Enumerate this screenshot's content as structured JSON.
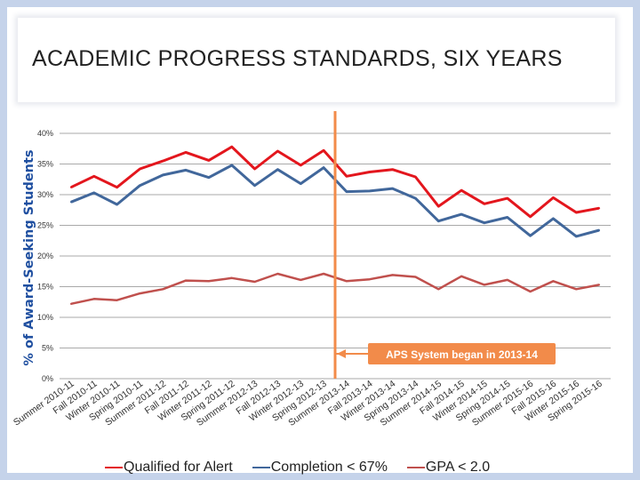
{
  "chart_data": {
    "type": "line",
    "title": "ACADEMIC PROGRESS STANDARDS, SIX YEARS",
    "ylabel": "% of Award-Seeking Students",
    "xlabel": "",
    "ylim": [
      0,
      40
    ],
    "yticks": [
      "0%",
      "5%",
      "10%",
      "15%",
      "20%",
      "25%",
      "30%",
      "35%",
      "40%"
    ],
    "grid": true,
    "legend_position": "bottom",
    "categories": [
      "Summer 2010-11",
      "Fall 2010-11",
      "Winter 2010-11",
      "Spring 2010-11",
      "Summer 2011-12",
      "Fall 2011-12",
      "Winter 2011-12",
      "Spring 2011-12",
      "Summer 2012-13",
      "Fall 2012-13",
      "Winter 2012-13",
      "Spring 2012-13",
      "Summer 2013-14",
      "Fall 2013-14",
      "Winter 2013-14",
      "Spring 2013-14",
      "Summer 2014-15",
      "Fall 2014-15",
      "Winter 2014-15",
      "Spring 2014-15",
      "Summer 2015-16",
      "Fall 2015-16",
      "Winter 2015-16",
      "Spring 2015-16"
    ],
    "series": [
      {
        "name": "Qualified for Alert",
        "color": "#e3161d",
        "values": [
          31.2,
          33.0,
          31.2,
          34.2,
          35.5,
          36.9,
          35.6,
          37.8,
          34.2,
          37.1,
          34.8,
          37.2,
          33.0,
          33.7,
          34.1,
          32.9,
          28.1,
          30.7,
          28.5,
          29.4,
          26.4,
          29.5,
          27.1,
          27.8
        ]
      },
      {
        "name": "Completion < 67%",
        "color": "#41679b",
        "values": [
          28.8,
          30.3,
          28.4,
          31.5,
          33.2,
          34.0,
          32.8,
          34.8,
          31.5,
          34.1,
          31.8,
          34.4,
          30.5,
          30.6,
          31.0,
          29.4,
          25.7,
          26.8,
          25.4,
          26.3,
          23.3,
          26.1,
          23.2,
          24.2
        ]
      },
      {
        "name": "GPA < 2.0",
        "color": "#c0504d",
        "values": [
          12.2,
          13.0,
          12.8,
          13.9,
          14.6,
          16.0,
          15.9,
          16.4,
          15.8,
          17.1,
          16.1,
          17.1,
          15.9,
          16.2,
          16.9,
          16.6,
          14.6,
          16.7,
          15.3,
          16.1,
          14.2,
          15.9,
          14.6,
          15.3
        ]
      }
    ],
    "annotation": {
      "text": "APS System began in 2013-14",
      "category": "Spring 2012-13",
      "color": "#f28b4a"
    }
  }
}
